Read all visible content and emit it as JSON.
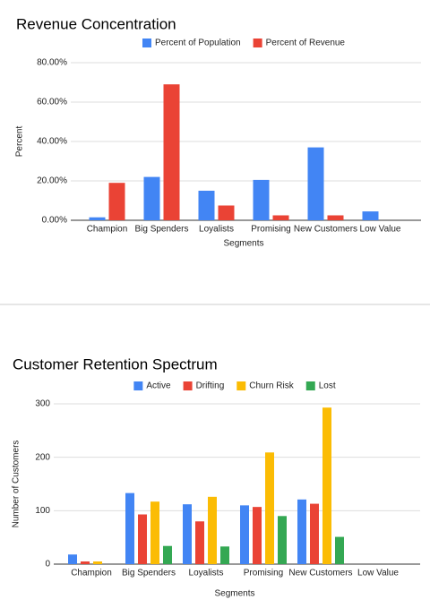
{
  "chart_data": [
    {
      "type": "bar",
      "title": "Revenue Concentration",
      "x_label": "Segments",
      "y_label": "Percent",
      "categories": [
        "Champion",
        "Big Spenders",
        "Loyalists",
        "Promising",
        "New Customers",
        "Low Value"
      ],
      "series": [
        {
          "name": "Percent of Population",
          "color": "#4285f4",
          "values": [
            1.5,
            22,
            15,
            20.5,
            37,
            4.5
          ]
        },
        {
          "name": "Percent of Revenue",
          "color": "#ea4335",
          "values": [
            19,
            69,
            7.5,
            2.5,
            2.5,
            0
          ]
        }
      ],
      "ylim": [
        0,
        80
      ],
      "yticks": [
        {
          "value": 0,
          "label": "0.00%"
        },
        {
          "value": 20,
          "label": "20.00%"
        },
        {
          "value": 40,
          "label": "40.00%"
        },
        {
          "value": 60,
          "label": "60.00%"
        },
        {
          "value": 80,
          "label": "80.00%"
        }
      ],
      "grid": true,
      "legend": "top"
    },
    {
      "type": "bar",
      "title": "Customer Retention Spectrum",
      "x_label": "Segments",
      "y_label": "Number of Customers",
      "categories": [
        "Champion",
        "Big Spenders",
        "Loyalists",
        "Promising",
        "New Customers",
        "Low Value"
      ],
      "series": [
        {
          "name": "Active",
          "color": "#4285f4",
          "values": [
            18,
            133,
            112,
            110,
            121,
            0
          ]
        },
        {
          "name": "Drifting",
          "color": "#ea4335",
          "values": [
            5,
            93,
            80,
            107,
            113,
            0
          ]
        },
        {
          "name": "Churn Risk",
          "color": "#fbbc04",
          "values": [
            5,
            117,
            126,
            209,
            293,
            0
          ]
        },
        {
          "name": "Lost",
          "color": "#34a853",
          "values": [
            0,
            34,
            33,
            90,
            51,
            0
          ]
        }
      ],
      "ylim": [
        0,
        300
      ],
      "yticks": [
        0,
        100,
        200,
        300
      ],
      "grid": true,
      "legend": "top"
    }
  ]
}
